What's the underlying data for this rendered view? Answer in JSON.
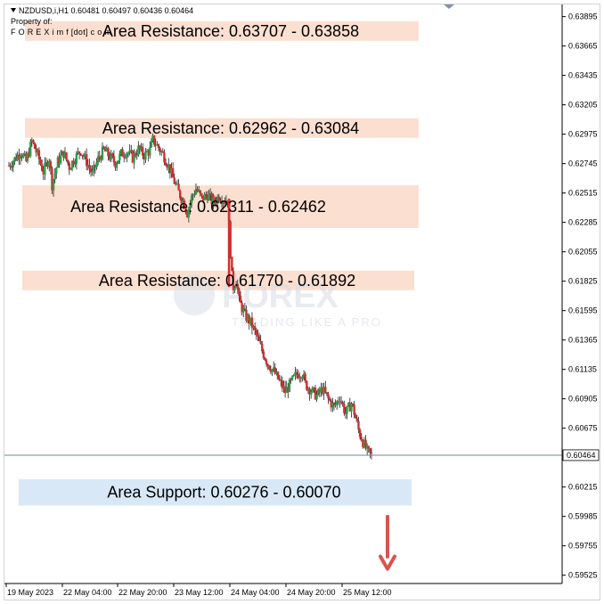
{
  "header": {
    "symbol_line": "NZDUSD,i,H1  0.60481 0.60497 0.60436 0.60464",
    "property_line": "Property of:",
    "brand_line": "F O R E X i m f [dot] c o m"
  },
  "watermark": {
    "brand": "FOREX",
    "tagline": "TRADING LIKE A PRO"
  },
  "chart_data": {
    "type": "candlestick",
    "symbol": "NZDUSD,i",
    "timeframe": "H1",
    "ohlc_last": {
      "open": 0.60481,
      "high": 0.60497,
      "low": 0.60436,
      "close": 0.60464
    },
    "current_price": "0.60464",
    "y_ticks": [
      "0.63895",
      "0.63665",
      "0.63435",
      "0.63205",
      "0.62975",
      "0.62745",
      "0.62515",
      "0.62285",
      "0.62055",
      "0.61825",
      "0.61595",
      "0.61365",
      "0.61135",
      "0.60905",
      "0.60675",
      "0.60215",
      "0.59985",
      "0.59755",
      "0.59525"
    ],
    "x_ticks": [
      "19 May 2023",
      "22 May 04:00",
      "22 May 20:00",
      "23 May 12:00",
      "24 May 04:00",
      "24 May 20:00",
      "25 May 12:00"
    ],
    "ylim": [
      0.5946,
      0.6399
    ],
    "zones": [
      {
        "kind": "resistance",
        "label": "Area Resistance: 0.63707 - 0.63858",
        "high": 0.63858,
        "low": 0.63707,
        "color": "#fbdfd0"
      },
      {
        "kind": "resistance",
        "label": "Area Resistance: 0.62962 - 0.63084",
        "high": 0.63084,
        "low": 0.62962,
        "color": "#fbdfd0"
      },
      {
        "kind": "resistance",
        "label": "Area Resistance: 0.62311 - 0.62462",
        "high": 0.62462,
        "low": 0.62311,
        "color": "#fbdfd0"
      },
      {
        "kind": "resistance",
        "label": "Area Resistance: 0.61770 - 0.61892",
        "high": 0.61892,
        "low": 0.6177,
        "color": "#fbdfd0"
      },
      {
        "kind": "support",
        "label": "Area Support: 0.60276 - 0.60070",
        "high": 0.60276,
        "low": 0.6007,
        "color": "#d8e8f6"
      }
    ],
    "close_path": [
      [
        0,
        0.6273
      ],
      [
        4,
        0.6278
      ],
      [
        8,
        0.6284
      ],
      [
        12,
        0.6276
      ],
      [
        16,
        0.6292
      ],
      [
        20,
        0.6281
      ],
      [
        24,
        0.6268
      ],
      [
        28,
        0.6279
      ],
      [
        30,
        0.6258
      ],
      [
        34,
        0.6276
      ],
      [
        38,
        0.6283
      ],
      [
        42,
        0.6272
      ],
      [
        46,
        0.6279
      ],
      [
        50,
        0.6285
      ],
      [
        54,
        0.6276
      ],
      [
        58,
        0.6266
      ],
      [
        62,
        0.6278
      ],
      [
        66,
        0.6285
      ],
      [
        70,
        0.628
      ],
      [
        74,
        0.6275
      ],
      [
        78,
        0.6282
      ],
      [
        82,
        0.6284
      ],
      [
        86,
        0.6279
      ],
      [
        90,
        0.6286
      ],
      [
        94,
        0.6281
      ],
      [
        98,
        0.6285
      ],
      [
        100,
        0.6293
      ],
      [
        104,
        0.6287
      ],
      [
        108,
        0.628
      ],
      [
        112,
        0.627
      ],
      [
        114,
        0.6263
      ],
      [
        118,
        0.6252
      ],
      [
        122,
        0.6243
      ],
      [
        124,
        0.6236
      ],
      [
        127,
        0.6248
      ],
      [
        130,
        0.6255
      ],
      [
        134,
        0.6247
      ],
      [
        138,
        0.625
      ],
      [
        142,
        0.6244
      ],
      [
        146,
        0.6249
      ],
      [
        150,
        0.6246
      ],
      [
        152,
        0.6247
      ],
      [
        153,
        0.6226
      ],
      [
        154,
        0.6206
      ],
      [
        155,
        0.6186
      ],
      [
        156,
        0.6178
      ],
      [
        158,
        0.6184
      ],
      [
        160,
        0.6167
      ],
      [
        164,
        0.6156
      ],
      [
        168,
        0.615
      ],
      [
        172,
        0.614
      ],
      [
        176,
        0.6128
      ],
      [
        180,
        0.6118
      ],
      [
        184,
        0.6112
      ],
      [
        188,
        0.6104
      ],
      [
        192,
        0.6096
      ],
      [
        196,
        0.6103
      ],
      [
        200,
        0.611
      ],
      [
        204,
        0.6111
      ],
      [
        206,
        0.6102
      ],
      [
        210,
        0.6097
      ],
      [
        214,
        0.6093
      ],
      [
        218,
        0.6098
      ],
      [
        222,
        0.609
      ],
      [
        226,
        0.6084
      ],
      [
        230,
        0.6092
      ],
      [
        234,
        0.6079
      ],
      [
        238,
        0.6087
      ],
      [
        240,
        0.608
      ],
      [
        243,
        0.6066
      ],
      [
        246,
        0.6057
      ],
      [
        249,
        0.6049
      ],
      [
        252,
        0.6046
      ]
    ],
    "down_arrow_target": 0.5956,
    "colors": {
      "bull": "#26a34a",
      "bear": "#d32f2f",
      "price_line": "#6f8a8a",
      "arrow": "#d9534f"
    }
  }
}
